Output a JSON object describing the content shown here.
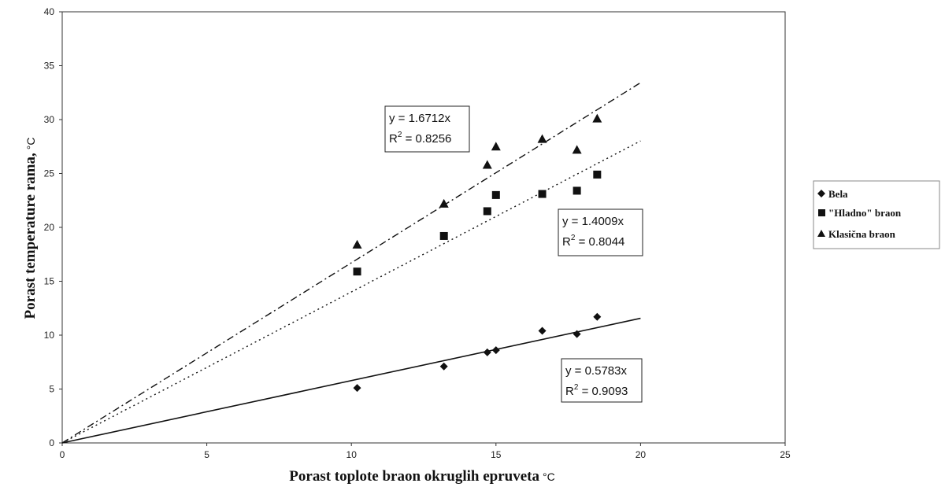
{
  "chart_data": {
    "type": "scatter",
    "title": "",
    "xlabel": "Porast toplote braon okruglih epruveta",
    "xlabel_unit": "°C",
    "ylabel": "Porast temperature rama,",
    "ylabel_unit": "°C",
    "xlim": [
      0,
      25
    ],
    "ylim": [
      0,
      40
    ],
    "xticks": [
      "0",
      "5",
      "10",
      "15",
      "20",
      "25"
    ],
    "yticks": [
      "0",
      "5",
      "10",
      "15",
      "20",
      "25",
      "30",
      "35",
      "40"
    ],
    "grid": true,
    "legend_position": "right",
    "series": [
      {
        "name": "Bela",
        "marker": "diamond",
        "x": [
          10.2,
          13.2,
          14.7,
          15.0,
          16.6,
          17.8,
          18.5
        ],
        "y": [
          5.1,
          7.1,
          8.4,
          8.6,
          10.4,
          10.1,
          11.7
        ],
        "trend": {
          "slope": 0.5783,
          "equation": "y = 0.5783x",
          "r2_label": "R",
          "r2_exp": "2",
          "r2_value": " = 0.9093",
          "line_style": "solid",
          "x_end": 20
        }
      },
      {
        "name": "\"Hladno\" braon",
        "marker": "square",
        "x": [
          10.2,
          13.2,
          14.7,
          15.0,
          16.6,
          17.8,
          18.5
        ],
        "y": [
          15.9,
          19.2,
          21.5,
          23.0,
          23.1,
          23.4,
          24.9
        ],
        "trend": {
          "slope": 1.4009,
          "equation": "y = 1.4009x",
          "r2_label": "R",
          "r2_exp": "2",
          "r2_value": " = 0.8044",
          "line_style": "dotted",
          "x_end": 20
        }
      },
      {
        "name": "Klasična braon",
        "marker": "triangle",
        "x": [
          10.2,
          13.2,
          14.7,
          15.0,
          16.6,
          17.8,
          18.5
        ],
        "y": [
          18.4,
          22.2,
          25.8,
          27.5,
          28.2,
          27.2,
          30.1
        ],
        "trend": {
          "slope": 1.6712,
          "equation": "y = 1.6712x",
          "r2_label": "R",
          "r2_exp": "2",
          "r2_value": " = 0.8256",
          "line_style": "dashdot",
          "x_end": 20
        }
      }
    ]
  }
}
